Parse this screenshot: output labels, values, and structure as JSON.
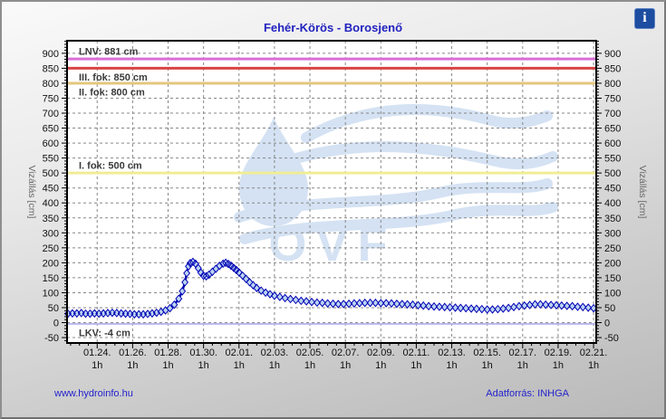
{
  "header": {
    "title": "Fehér-Körös - Borosjenő",
    "info_icon_glyph": "i"
  },
  "footer": {
    "site_link": "www.hydroinfo.hu",
    "source_label": "Adatforrás: INHGA"
  },
  "chart_data": {
    "type": "line",
    "title": "Fehér-Körös - Borosjenő",
    "watermark": {
      "text": "OVF",
      "color": "#d4e2f3"
    },
    "grid": {
      "color": "#878787",
      "dash": "3 3"
    },
    "y_axis": {
      "label": "Vizállás [cm]",
      "domain_min": -68,
      "domain_max": 942,
      "tick_min": -50,
      "tick_max": 900,
      "tick_step": 50,
      "minor_step": 10
    },
    "x_axis": {
      "domain_min": -1.7,
      "domain_max": 28.15,
      "minor_step": 0.5,
      "sub_label": "1h",
      "ticks": [
        {
          "day": 0,
          "label": "01.24."
        },
        {
          "day": 2,
          "label": "01.26."
        },
        {
          "day": 4,
          "label": "01.28."
        },
        {
          "day": 6,
          "label": "01.30."
        },
        {
          "day": 8,
          "label": "02.01."
        },
        {
          "day": 10,
          "label": "02.03."
        },
        {
          "day": 12,
          "label": "02.05."
        },
        {
          "day": 14,
          "label": "02.07."
        },
        {
          "day": 16,
          "label": "02.09."
        },
        {
          "day": 18,
          "label": "02.11."
        },
        {
          "day": 20,
          "label": "02.13."
        },
        {
          "day": 22,
          "label": "02.15."
        },
        {
          "day": 24,
          "label": "02.17."
        },
        {
          "day": 26,
          "label": "02.19."
        },
        {
          "day": 28,
          "label": "02.21."
        }
      ]
    },
    "ref_lines": [
      {
        "name": "LNV",
        "label": "LNV: 881 cm",
        "value": 881,
        "color": "#d96fd9",
        "width": 3,
        "label_side": "above"
      },
      {
        "name": "III-fok",
        "label": "III. fok: 850 cm",
        "value": 850,
        "color": "#d94444",
        "width": 3,
        "label_side": "below"
      },
      {
        "name": "II-fok",
        "label": "II. fok: 800 cm",
        "value": 800,
        "color": "#e5c77c",
        "width": 3,
        "label_side": "below"
      },
      {
        "name": "I-fok",
        "label": "I. fok: 500 cm",
        "value": 500,
        "color": "#f1ed95",
        "width": 3,
        "label_side": "above"
      },
      {
        "name": "LKV",
        "label": "LKV: -4 cm",
        "value": -4,
        "color": "#b7b7ec",
        "width": 2,
        "label_side": "below"
      }
    ],
    "series": [
      {
        "name": "Vizállás (1h)",
        "line_color": "#0000b4",
        "marker_fill": "#bad4ef",
        "points": [
          [
            -1.65,
            30
          ],
          [
            -1.4,
            31
          ],
          [
            -1.15,
            31
          ],
          [
            -0.9,
            32
          ],
          [
            -0.65,
            30
          ],
          [
            -0.4,
            30
          ],
          [
            -0.15,
            31
          ],
          [
            0.1,
            30
          ],
          [
            0.35,
            31
          ],
          [
            0.6,
            32
          ],
          [
            0.85,
            33
          ],
          [
            1.1,
            32
          ],
          [
            1.35,
            31
          ],
          [
            1.6,
            30
          ],
          [
            1.85,
            29
          ],
          [
            2.1,
            28
          ],
          [
            2.35,
            28
          ],
          [
            2.6,
            28
          ],
          [
            2.85,
            29
          ],
          [
            3.1,
            31
          ],
          [
            3.35,
            33
          ],
          [
            3.6,
            36
          ],
          [
            3.85,
            41
          ],
          [
            4.1,
            48
          ],
          [
            4.35,
            60
          ],
          [
            4.6,
            80
          ],
          [
            4.8,
            105
          ],
          [
            4.95,
            135
          ],
          [
            5.05,
            165
          ],
          [
            5.15,
            188
          ],
          [
            5.25,
            199
          ],
          [
            5.4,
            203
          ],
          [
            5.55,
            197
          ],
          [
            5.7,
            182
          ],
          [
            5.85,
            167
          ],
          [
            6.0,
            157
          ],
          [
            6.15,
            155
          ],
          [
            6.3,
            160
          ],
          [
            6.5,
            170
          ],
          [
            6.7,
            180
          ],
          [
            6.9,
            190
          ],
          [
            7.1,
            197
          ],
          [
            7.25,
            200
          ],
          [
            7.4,
            196
          ],
          [
            7.55,
            190
          ],
          [
            7.7,
            183
          ],
          [
            7.85,
            176
          ],
          [
            8.0,
            168
          ],
          [
            8.2,
            157
          ],
          [
            8.4,
            146
          ],
          [
            8.6,
            135
          ],
          [
            8.8,
            125
          ],
          [
            9.0,
            116
          ],
          [
            9.25,
            107
          ],
          [
            9.5,
            100
          ],
          [
            9.75,
            95
          ],
          [
            10.0,
            90
          ],
          [
            10.3,
            86
          ],
          [
            10.6,
            82
          ],
          [
            10.9,
            79
          ],
          [
            11.2,
            76
          ],
          [
            11.5,
            73
          ],
          [
            11.8,
            71
          ],
          [
            12.1,
            69
          ],
          [
            12.4,
            67
          ],
          [
            12.7,
            66
          ],
          [
            13.0,
            64
          ],
          [
            13.3,
            63
          ],
          [
            13.6,
            62
          ],
          [
            13.9,
            62
          ],
          [
            14.2,
            63
          ],
          [
            14.5,
            64
          ],
          [
            14.8,
            65
          ],
          [
            15.1,
            66
          ],
          [
            15.4,
            66
          ],
          [
            15.7,
            66
          ],
          [
            16.0,
            65
          ],
          [
            16.3,
            65
          ],
          [
            16.6,
            64
          ],
          [
            16.9,
            63
          ],
          [
            17.2,
            62
          ],
          [
            17.5,
            61
          ],
          [
            17.8,
            60
          ],
          [
            18.1,
            58
          ],
          [
            18.4,
            57
          ],
          [
            18.7,
            55
          ],
          [
            19.0,
            54
          ],
          [
            19.3,
            53
          ],
          [
            19.6,
            52
          ],
          [
            19.9,
            51
          ],
          [
            20.2,
            50
          ],
          [
            20.5,
            49
          ],
          [
            20.8,
            48
          ],
          [
            21.1,
            47
          ],
          [
            21.4,
            46
          ],
          [
            21.7,
            45
          ],
          [
            22.0,
            44
          ],
          [
            22.3,
            44
          ],
          [
            22.6,
            45
          ],
          [
            22.9,
            47
          ],
          [
            23.2,
            49
          ],
          [
            23.5,
            52
          ],
          [
            23.8,
            55
          ],
          [
            24.1,
            57
          ],
          [
            24.4,
            59
          ],
          [
            24.7,
            61
          ],
          [
            25.0,
            61
          ],
          [
            25.3,
            60
          ],
          [
            25.6,
            59
          ],
          [
            25.9,
            58
          ],
          [
            26.2,
            57
          ],
          [
            26.5,
            56
          ],
          [
            26.8,
            55
          ],
          [
            27.1,
            53
          ],
          [
            27.4,
            52
          ],
          [
            27.7,
            50
          ],
          [
            28.0,
            48
          ]
        ]
      }
    ]
  }
}
